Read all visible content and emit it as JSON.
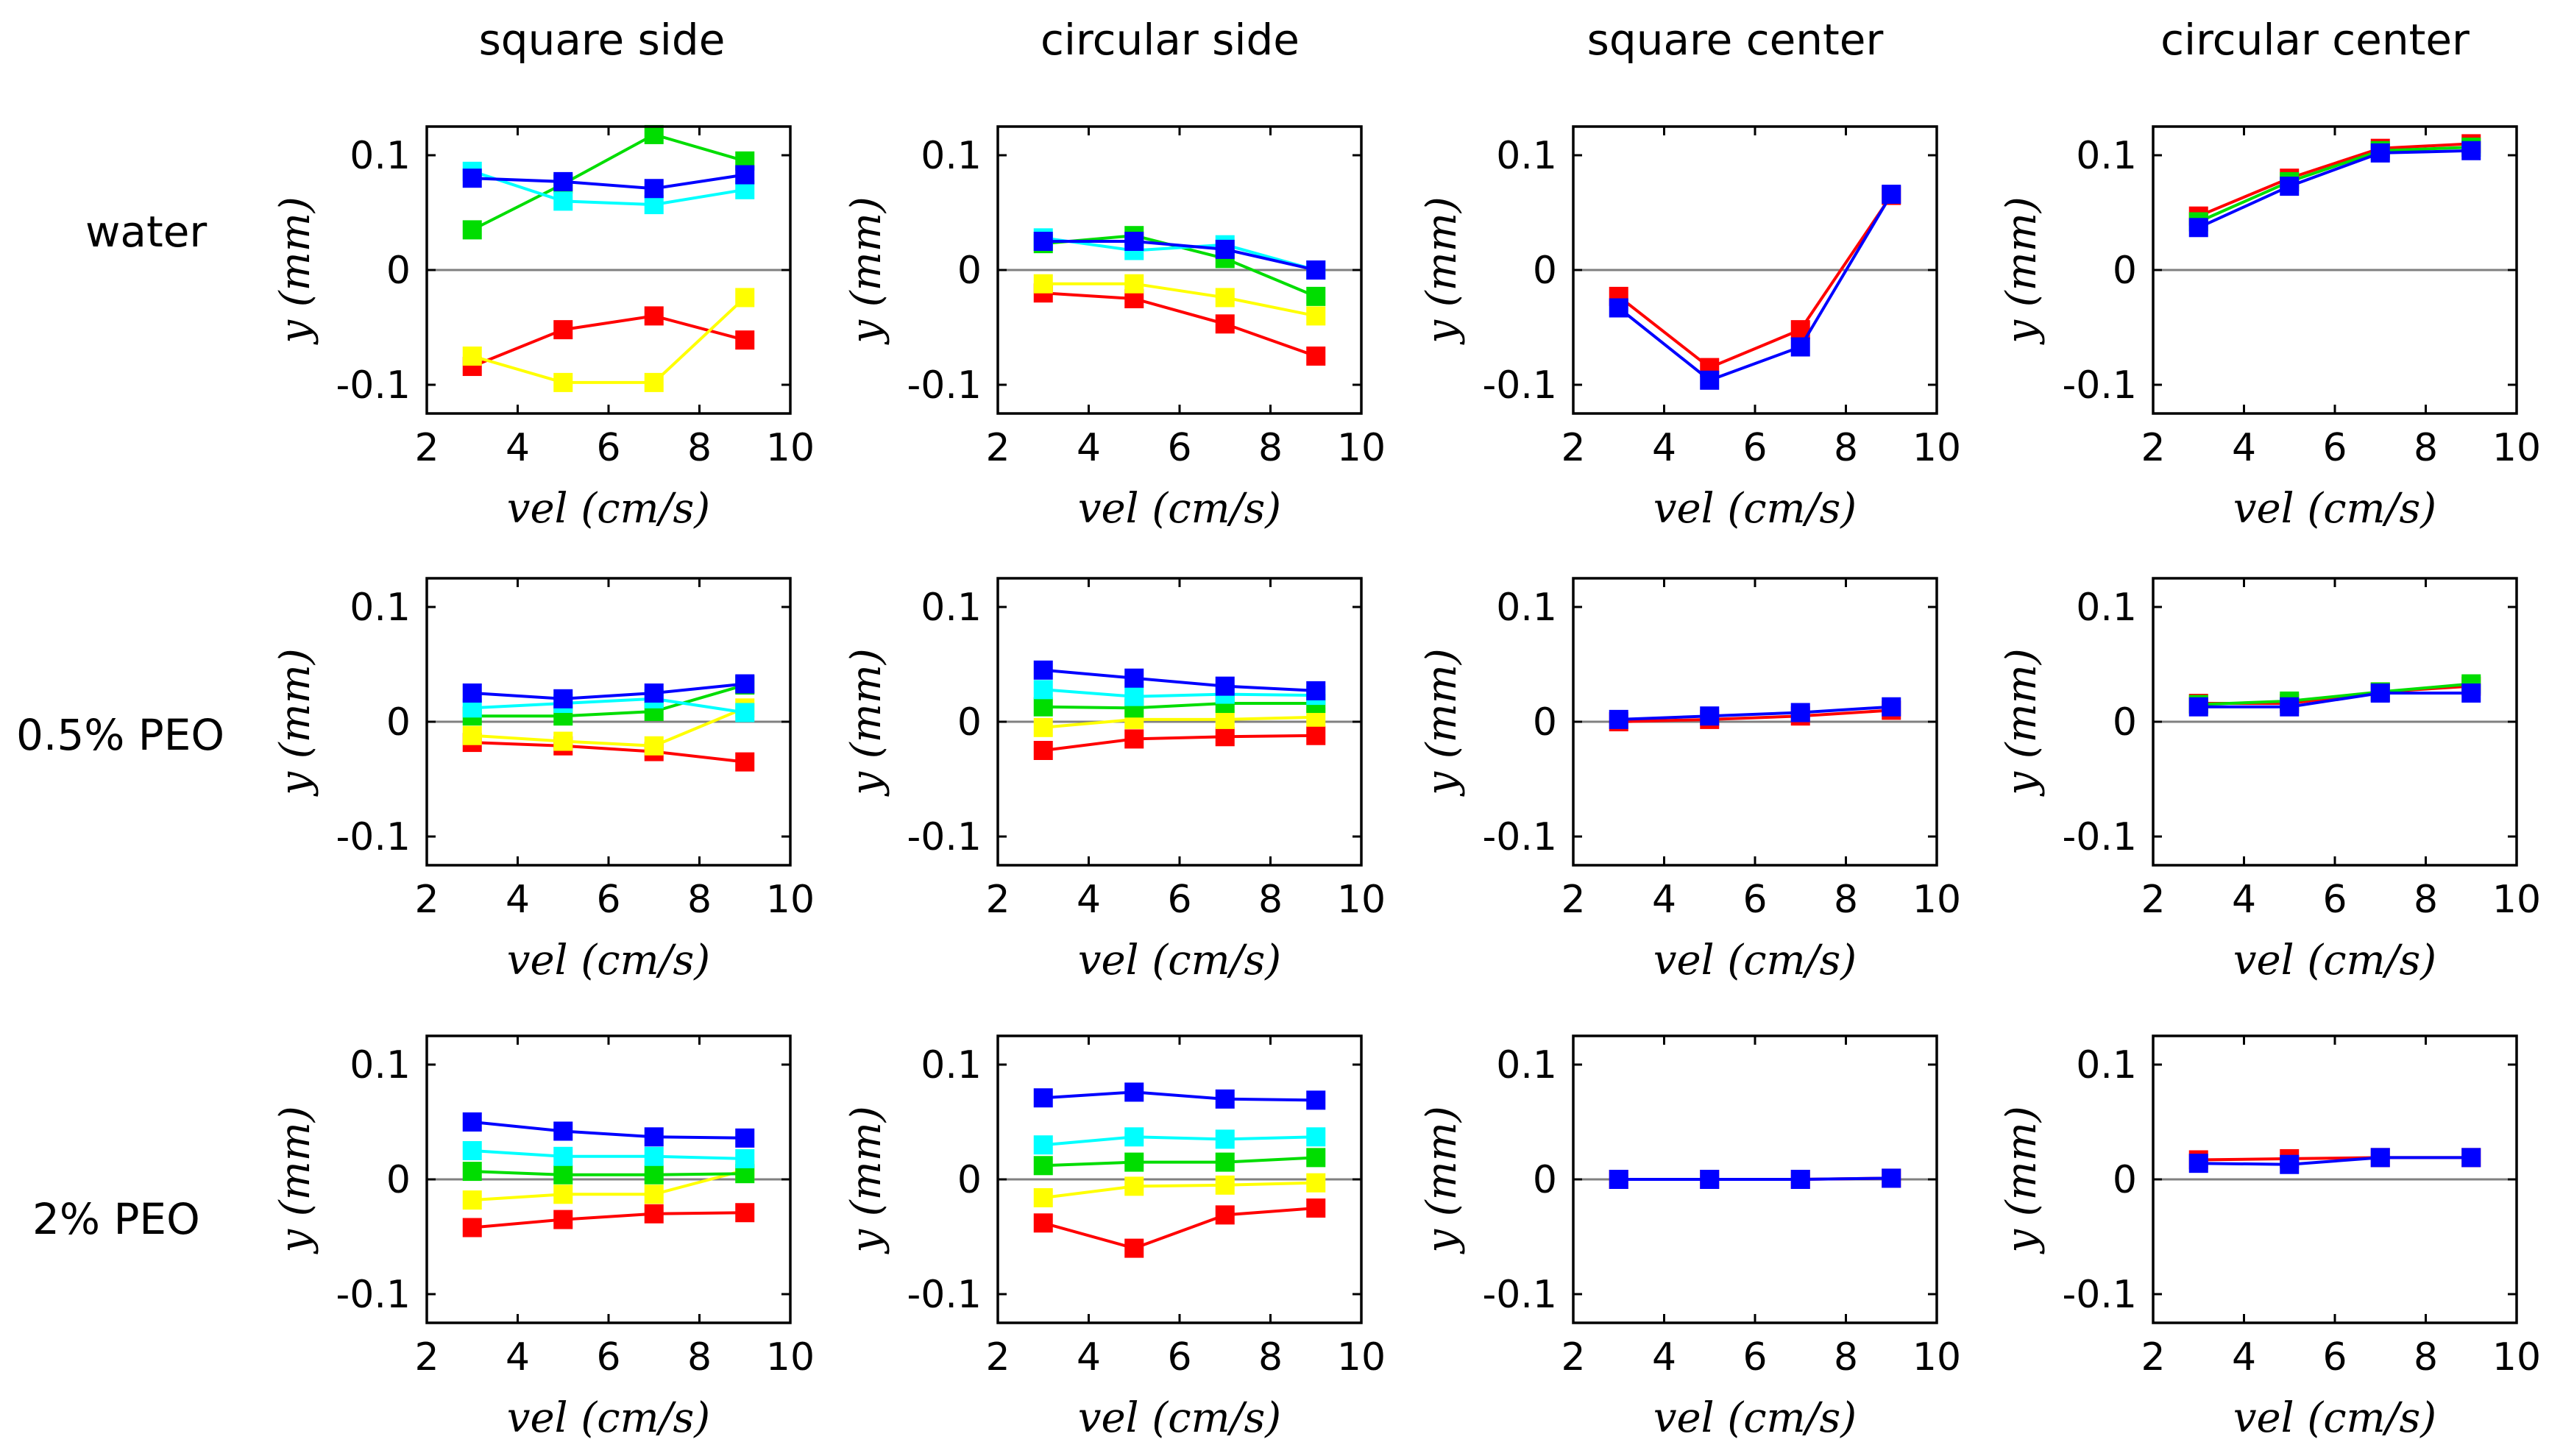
{
  "column_titles": [
    "square side",
    "circular side",
    "square center",
    "circular center"
  ],
  "row_labels": [
    "water",
    "0.5% PEO",
    "2% PEO"
  ],
  "axes": {
    "xlabel": "vel (cm/s)",
    "ylabel": "y (mm)",
    "xlim": [
      2,
      10
    ],
    "ylim": [
      -0.125,
      0.125
    ],
    "xticks": [
      2,
      4,
      6,
      8,
      10
    ],
    "xtick_labels": [
      "2",
      "4",
      "6",
      "8",
      "10"
    ],
    "yticks": [
      0.1,
      0,
      -0.1
    ],
    "ytick_labels": [
      "0.1",
      "0",
      "-0.1"
    ],
    "zero_line": true,
    "grid": false,
    "marker": "square"
  },
  "colors": {
    "red": "#ff0000",
    "yellow": "#ffff00",
    "green": "#00dd00",
    "cyan": "#00ffff",
    "blue": "#0000ff",
    "zero_line": "#808080",
    "frame": "#000000"
  },
  "chart_data": [
    {
      "type": "line",
      "row": "water",
      "column": "square side",
      "x": [
        3,
        5,
        7,
        9
      ],
      "series": [
        {
          "color": "red",
          "values": [
            -0.084,
            -0.052,
            -0.04,
            -0.061
          ]
        },
        {
          "color": "yellow",
          "values": [
            -0.075,
            -0.098,
            -0.098,
            -0.024
          ]
        },
        {
          "color": "green",
          "values": [
            0.035,
            0.075,
            0.118,
            0.095
          ]
        },
        {
          "color": "cyan",
          "values": [
            0.086,
            0.06,
            0.057,
            0.07
          ]
        },
        {
          "color": "blue",
          "values": [
            0.08,
            0.077,
            0.071,
            0.083
          ]
        }
      ]
    },
    {
      "type": "line",
      "row": "water",
      "column": "circular side",
      "x": [
        3,
        5,
        7,
        9
      ],
      "series": [
        {
          "color": "red",
          "values": [
            -0.02,
            -0.025,
            -0.047,
            -0.075
          ]
        },
        {
          "color": "yellow",
          "values": [
            -0.012,
            -0.012,
            -0.024,
            -0.04
          ]
        },
        {
          "color": "green",
          "values": [
            0.023,
            0.03,
            0.01,
            -0.023
          ]
        },
        {
          "color": "cyan",
          "values": [
            0.028,
            0.017,
            0.022,
            0.0
          ]
        },
        {
          "color": "blue",
          "values": [
            0.025,
            0.025,
            0.018,
            0.0
          ]
        }
      ]
    },
    {
      "type": "line",
      "row": "water",
      "column": "square center",
      "x": [
        3,
        5,
        7,
        9
      ],
      "series": [
        {
          "color": "red",
          "values": [
            -0.023,
            -0.085,
            -0.052,
            0.065
          ]
        },
        {
          "color": "blue",
          "values": [
            -0.033,
            -0.096,
            -0.067,
            0.066
          ]
        }
      ]
    },
    {
      "type": "line",
      "row": "water",
      "column": "circular center",
      "x": [
        3,
        5,
        7,
        9
      ],
      "series": [
        {
          "color": "red",
          "values": [
            0.047,
            0.08,
            0.106,
            0.11
          ]
        },
        {
          "color": "green",
          "values": [
            0.042,
            0.077,
            0.104,
            0.107
          ]
        },
        {
          "color": "blue",
          "values": [
            0.037,
            0.073,
            0.102,
            0.104
          ]
        }
      ]
    },
    {
      "type": "line",
      "row": "0.5% PEO",
      "column": "square side",
      "x": [
        3,
        5,
        7,
        9
      ],
      "series": [
        {
          "color": "red",
          "values": [
            -0.018,
            -0.021,
            -0.026,
            -0.035
          ]
        },
        {
          "color": "yellow",
          "values": [
            -0.012,
            -0.017,
            -0.021,
            0.012
          ]
        },
        {
          "color": "green",
          "values": [
            0.005,
            0.005,
            0.009,
            0.032
          ]
        },
        {
          "color": "cyan",
          "values": [
            0.012,
            0.016,
            0.02,
            0.008
          ]
        },
        {
          "color": "blue",
          "values": [
            0.025,
            0.02,
            0.025,
            0.033
          ]
        }
      ]
    },
    {
      "type": "line",
      "row": "0.5% PEO",
      "column": "circular side",
      "x": [
        3,
        5,
        7,
        9
      ],
      "series": [
        {
          "color": "red",
          "values": [
            -0.025,
            -0.015,
            -0.013,
            -0.012
          ]
        },
        {
          "color": "yellow",
          "values": [
            -0.005,
            0.002,
            0.002,
            0.004
          ]
        },
        {
          "color": "green",
          "values": [
            0.013,
            0.012,
            0.016,
            0.016
          ]
        },
        {
          "color": "cyan",
          "values": [
            0.028,
            0.022,
            0.024,
            0.023
          ]
        },
        {
          "color": "blue",
          "values": [
            0.045,
            0.038,
            0.031,
            0.027
          ]
        }
      ]
    },
    {
      "type": "line",
      "row": "0.5% PEO",
      "column": "square center",
      "x": [
        3,
        5,
        7,
        9
      ],
      "series": [
        {
          "color": "red",
          "values": [
            0.0,
            0.002,
            0.005,
            0.01
          ]
        },
        {
          "color": "blue",
          "values": [
            0.002,
            0.005,
            0.008,
            0.013
          ]
        }
      ]
    },
    {
      "type": "line",
      "row": "0.5% PEO",
      "column": "circular center",
      "x": [
        3,
        5,
        7,
        9
      ],
      "series": [
        {
          "color": "red",
          "values": [
            0.016,
            0.016,
            0.026,
            0.031
          ]
        },
        {
          "color": "green",
          "values": [
            0.015,
            0.018,
            0.026,
            0.033
          ]
        },
        {
          "color": "blue",
          "values": [
            0.013,
            0.013,
            0.025,
            0.025
          ]
        }
      ]
    },
    {
      "type": "line",
      "row": "2% PEO",
      "column": "square side",
      "x": [
        3,
        5,
        7,
        9
      ],
      "series": [
        {
          "color": "red",
          "values": [
            -0.042,
            -0.035,
            -0.03,
            -0.029
          ]
        },
        {
          "color": "yellow",
          "values": [
            -0.018,
            -0.013,
            -0.013,
            0.008
          ]
        },
        {
          "color": "green",
          "values": [
            0.007,
            0.004,
            0.004,
            0.005
          ]
        },
        {
          "color": "cyan",
          "values": [
            0.025,
            0.02,
            0.02,
            0.018
          ]
        },
        {
          "color": "blue",
          "values": [
            0.05,
            0.042,
            0.037,
            0.036
          ]
        }
      ]
    },
    {
      "type": "line",
      "row": "2% PEO",
      "column": "circular side",
      "x": [
        3,
        5,
        7,
        9
      ],
      "series": [
        {
          "color": "red",
          "values": [
            -0.038,
            -0.06,
            -0.031,
            -0.025
          ]
        },
        {
          "color": "yellow",
          "values": [
            -0.016,
            -0.006,
            -0.005,
            -0.003
          ]
        },
        {
          "color": "green",
          "values": [
            0.012,
            0.015,
            0.015,
            0.019
          ]
        },
        {
          "color": "cyan",
          "values": [
            0.03,
            0.037,
            0.035,
            0.037
          ]
        },
        {
          "color": "blue",
          "values": [
            0.071,
            0.076,
            0.07,
            0.069
          ]
        }
      ]
    },
    {
      "type": "line",
      "row": "2% PEO",
      "column": "square center",
      "x": [
        3,
        5,
        7,
        9
      ],
      "series": [
        {
          "color": "red",
          "values": [
            0.0,
            0.0,
            0.0,
            0.001
          ]
        },
        {
          "color": "blue",
          "values": [
            0.0,
            0.0,
            0.0,
            0.001
          ]
        }
      ]
    },
    {
      "type": "line",
      "row": "2% PEO",
      "column": "circular center",
      "x": [
        3,
        5,
        7,
        9
      ],
      "series": [
        {
          "color": "red",
          "values": [
            0.017,
            0.018,
            0.019,
            0.019
          ]
        },
        {
          "color": "blue",
          "values": [
            0.014,
            0.013,
            0.019,
            0.019
          ]
        }
      ]
    }
  ]
}
